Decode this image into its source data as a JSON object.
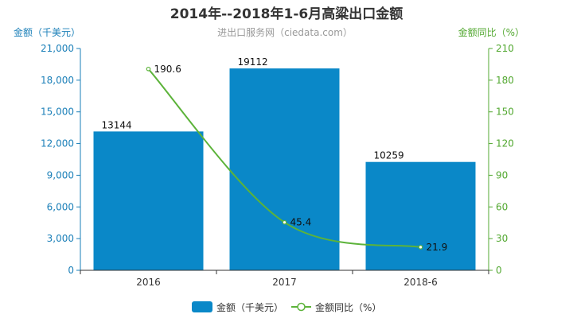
{
  "title": "2014年--2018年1-6月高粱出口金额",
  "subtitle": "进出口服务网（ciedata.com）",
  "colors": {
    "bar": "#0a88c8",
    "line": "#5cb33a",
    "left_axis": "#1a7fb8",
    "right_axis": "#52a830"
  },
  "chart_data": {
    "type": "bar",
    "categories": [
      "2016",
      "2017",
      "2018-6"
    ],
    "series": [
      {
        "name": "金额（千美元）",
        "type": "bar",
        "axis": "left",
        "values": [
          13144,
          19112,
          10259
        ],
        "labels": [
          "13144",
          "19112",
          "10259"
        ]
      },
      {
        "name": "金额同比（%）",
        "type": "line",
        "axis": "right",
        "values": [
          190.6,
          45.4,
          21.9
        ],
        "labels": [
          "190.6",
          "45.4",
          "21.9"
        ]
      }
    ],
    "y_left": {
      "label": "金额（千美元）",
      "ylim": [
        0,
        21000
      ],
      "ticks": [
        "0",
        "3,000",
        "6,000",
        "9,000",
        "12,000",
        "15,000",
        "18,000",
        "21,000"
      ]
    },
    "y_right": {
      "label": "金额同比（%）",
      "ylim": [
        0,
        210
      ],
      "ticks": [
        "0",
        "30",
        "60",
        "90",
        "120",
        "150",
        "180",
        "210"
      ]
    },
    "grid": false,
    "legend": "bottom"
  }
}
